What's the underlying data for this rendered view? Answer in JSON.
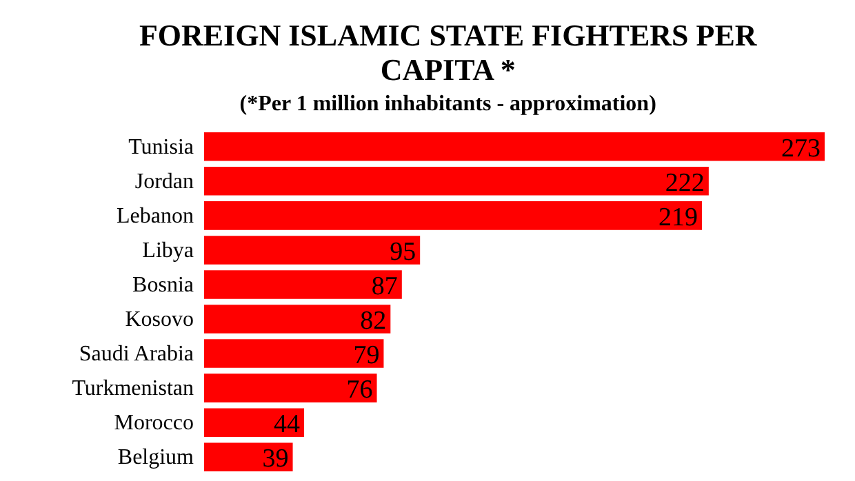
{
  "chart_data": {
    "type": "bar",
    "orientation": "horizontal",
    "title": "FOREIGN ISLAMIC STATE FIGHTERS PER CAPITA *",
    "subtitle": "(*Per 1 million inhabitants - approximation)",
    "categories": [
      "Tunisia",
      "Jordan",
      "Lebanon",
      "Libya",
      "Bosnia",
      "Kosovo",
      "Saudi Arabia",
      "Turkmenistan",
      "Morocco",
      "Belgium"
    ],
    "values": [
      273,
      222,
      219,
      95,
      87,
      82,
      79,
      76,
      44,
      39
    ],
    "color": "#ff0000",
    "data_labels": true,
    "tick_labels": "y"
  }
}
